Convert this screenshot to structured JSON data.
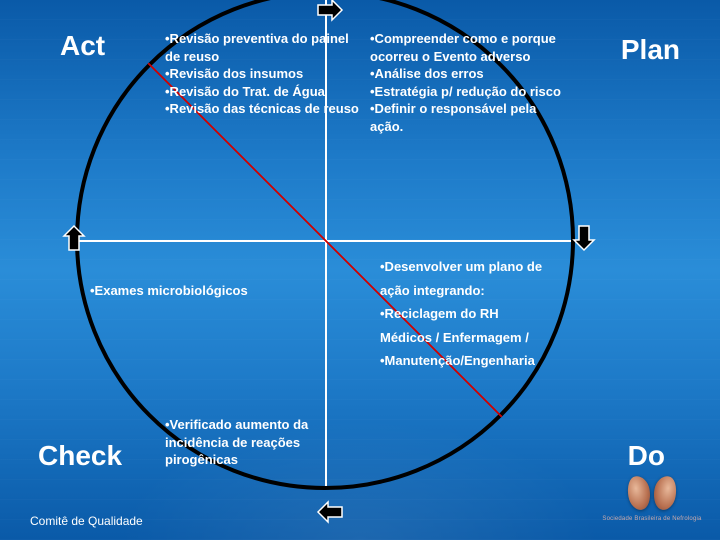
{
  "diagram": {
    "type": "pdca-cycle",
    "labels": {
      "act": "Act",
      "plan": "Plan",
      "check": "Check",
      "do": "Do"
    },
    "quadrants": {
      "act": "•Revisão preventiva do painel de reuso\n•Revisão dos insumos\n•Revisão do Trat. de Água\n•Revisão das técnicas de reuso",
      "plan": "•Compreender como e porque ocorreu o Evento adverso\n•Análise dos erros\n•Estratégia p/ redução do risco\n•Definir o responsável pela ação.",
      "do": "•Desenvolver um plano de\n\nação integrando:\n\n•Reciclagem do RH\n\nMédicos / Enfermagem /\n\n•Manutenção/Engenharia",
      "check1": "•Exames microbiológicos",
      "check2": "•Verificado aumento da incidência de reações pirogênicas"
    },
    "circle_border_color": "#000000",
    "cross_line_color": "#ffffff",
    "diag_line_color": "#d00000",
    "arrow_fill": "#000000",
    "arrow_stroke": "#ffffff",
    "text_color": "#ffffff",
    "label_fontsize": 28,
    "quad_fontsize": 13,
    "background_gradient": [
      "#0a5aa8",
      "#1e7bc9",
      "#2a8dd8"
    ]
  },
  "footer": "Comitê de Qualidade",
  "logo_text": "Sociedade Brasileira de Nefrologia"
}
